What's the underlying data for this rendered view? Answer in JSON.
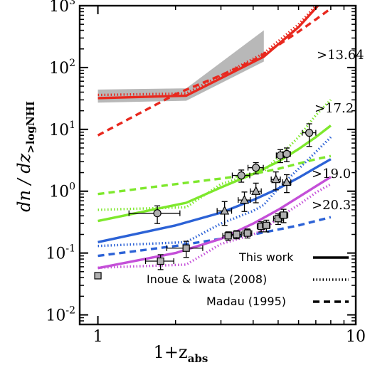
{
  "chart_data": {
    "type": "line",
    "xscale": "log",
    "yscale": "log",
    "xlim": [
      0.85,
      10
    ],
    "ylim": [
      0.007,
      1000
    ],
    "xlabel": {
      "main": "1+z",
      "sub": "abs"
    },
    "ylabel": {
      "main": "dn / dz",
      "sub": ">logNHI"
    },
    "x_ticks": [
      {
        "value": 1,
        "label": "1"
      },
      {
        "value": 10,
        "label": "10"
      }
    ],
    "y_ticks": [
      {
        "value": 0.01,
        "base": "10",
        "exp": "-2"
      },
      {
        "value": 0.1,
        "base": "10",
        "exp": "-1"
      },
      {
        "value": 1,
        "base": "10",
        "exp": "0"
      },
      {
        "value": 10,
        "base": "10",
        "exp": "1"
      },
      {
        "value": 100,
        "base": "10",
        "exp": "2"
      },
      {
        "value": 1000,
        "base": "10",
        "exp": "3"
      }
    ],
    "grid": false,
    "legend_position": "bottom-right",
    "legend": [
      {
        "label": "This work",
        "style": "solid"
      },
      {
        "label": "Inoue & Iwata (2008)",
        "style": "dotted"
      },
      {
        "label": "Madau (1995)",
        "style": "dashed"
      }
    ],
    "groups": [
      {
        "threshold_label": ">13.64",
        "color": "#e8281e",
        "series": {
          "solid": {
            "x": [
              1.0,
              2.2,
              4.4,
              6.0,
              8.0
            ],
            "y": [
              32,
              35,
              150,
              450,
              1700
            ]
          },
          "dotted": {
            "x": [
              1.0,
              2.2,
              4.4,
              6.0,
              8.0
            ],
            "y": [
              36,
              38,
              170,
              500,
              1800
            ]
          },
          "dashed": {
            "x": [
              1.0,
              2.0,
              3.0,
              4.0,
              5.0,
              6.0,
              7.0,
              8.0
            ],
            "y": [
              8.0,
              37,
              75,
              130,
              230,
              380,
              600,
              900
            ]
          }
        },
        "band": {
          "x": [
            1.0,
            2.2,
            4.4
          ],
          "low": [
            27,
            29,
            125
          ],
          "high": [
            44,
            46,
            400
          ]
        }
      },
      {
        "threshold_label": ">17.2",
        "color": "#7ee82c",
        "series": {
          "solid": {
            "x": [
              1.0,
              2.2,
              3.0,
              4.0,
              5.0,
              6.0,
              7.0,
              8.0
            ],
            "y": [
              0.33,
              0.65,
              1.15,
              1.9,
              3.0,
              4.8,
              7.5,
              11.5
            ]
          },
          "dotted": {
            "x": [
              1.0,
              2.2,
              3.0,
              4.0,
              4.4,
              5.0,
              6.0,
              7.0,
              8.0
            ],
            "y": [
              0.5,
              0.55,
              1.3,
              1.9,
              2.1,
              3.5,
              7.5,
              17,
              30
            ]
          },
          "dashed": {
            "x": [
              1.0,
              2.0,
              3.0,
              4.0,
              5.0,
              6.0,
              7.0,
              8.0
            ],
            "y": [
              0.9,
              1.3,
              1.6,
              1.9,
              2.3,
              2.8,
              3.3,
              3.7
            ]
          }
        },
        "points": {
          "marker": "circle",
          "x": [
            1.7,
            3.6,
            4.1,
            5.1,
            5.4,
            6.6
          ],
          "y": [
            0.44,
            1.8,
            2.4,
            3.8,
            4.0,
            8.8
          ],
          "xerr": [
            0.38,
            0.28,
            0.28,
            0.18,
            0.18,
            0.4
          ],
          "yerr": [
            0.14,
            0.4,
            0.5,
            0.9,
            1.0,
            3.5
          ]
        }
      },
      {
        "threshold_label": ">19.0",
        "color": "#2c62d6",
        "series": {
          "solid": {
            "x": [
              1.0,
              2.0,
              3.0,
              4.0,
              5.0,
              6.0,
              7.0,
              8.0
            ],
            "y": [
              0.15,
              0.28,
              0.45,
              0.72,
              1.1,
              1.65,
              2.4,
              3.3
            ]
          },
          "dotted": {
            "x": [
              1.0,
              2.2,
              3.0,
              4.0,
              4.4,
              5.0,
              6.0,
              7.0,
              8.0
            ],
            "y": [
              0.13,
              0.15,
              0.3,
              0.48,
              0.6,
              1.1,
              2.3,
              4.3,
              7.5
            ]
          },
          "dashed": {
            "x": [
              1.0,
              2.0,
              3.0,
              4.0,
              5.0,
              6.0,
              7.0,
              8.0
            ],
            "y": [
              0.09,
              0.13,
              0.17,
              0.2,
              0.24,
              0.28,
              0.33,
              0.38
            ]
          }
        },
        "points": {
          "marker": "triangle",
          "x": [
            3.1,
            3.7,
            4.1,
            4.9,
            5.4
          ],
          "y": [
            0.48,
            0.72,
            1.0,
            1.55,
            1.4
          ],
          "xerr": [
            0.2,
            0.2,
            0.2,
            0.2,
            0.2
          ],
          "yerr": [
            0.2,
            0.25,
            0.35,
            0.5,
            0.45
          ]
        }
      },
      {
        "threshold_label": ">20.3",
        "color": "#c44fd8",
        "series": {
          "solid": {
            "x": [
              1.0,
              2.0,
              3.0,
              4.0,
              5.0,
              6.0,
              7.0,
              8.0
            ],
            "y": [
              0.057,
              0.1,
              0.17,
              0.3,
              0.5,
              0.8,
              1.2,
              1.7
            ]
          },
          "dotted": {
            "x": [
              1.0,
              2.2,
              3.0,
              4.0,
              4.4,
              5.0,
              6.0,
              7.0,
              8.0
            ],
            "y": [
              0.058,
              0.065,
              0.14,
              0.2,
              0.24,
              0.37,
              0.6,
              0.95,
              1.3
            ]
          }
        },
        "points": {
          "marker": "square",
          "x": [
            1.0,
            1.75,
            2.2,
            3.2,
            3.45,
            3.8,
            4.3,
            4.5,
            5.0,
            5.25
          ],
          "y": [
            0.043,
            0.074,
            0.12,
            0.19,
            0.2,
            0.21,
            0.27,
            0.28,
            0.36,
            0.41
          ],
          "xerr": [
            0.0,
            0.22,
            0.35,
            0.15,
            0.15,
            0.15,
            0.15,
            0.15,
            0.2,
            0.2
          ],
          "yerr": [
            0.0,
            0.02,
            0.035,
            0.03,
            0.03,
            0.035,
            0.05,
            0.06,
            0.07,
            0.1
          ]
        }
      }
    ]
  }
}
